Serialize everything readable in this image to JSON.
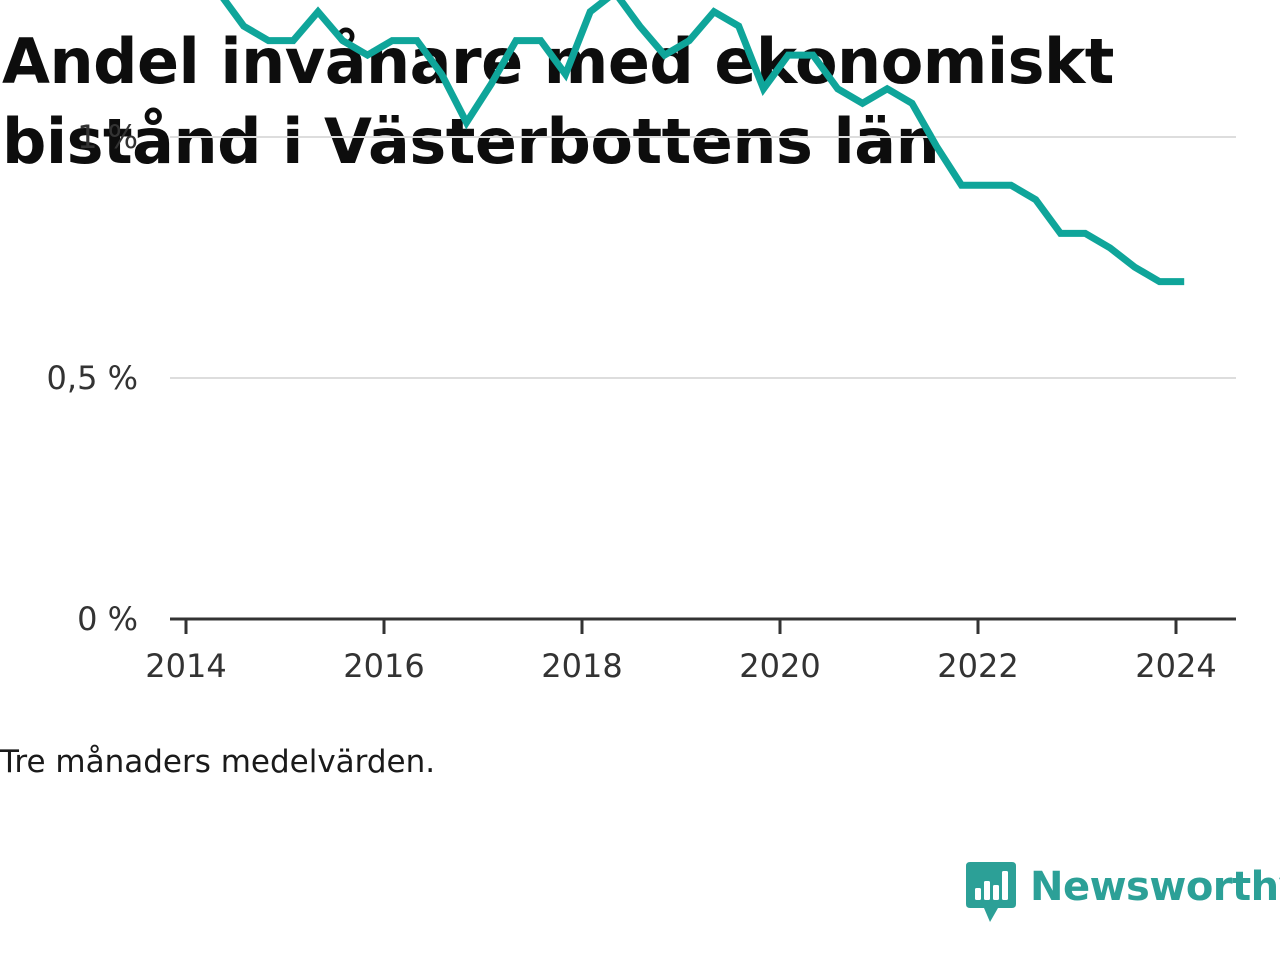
{
  "title": "Andel invånare med ekonomiskt bistånd i Västerbottens län",
  "footnote": "Tre månaders medelvärden.",
  "brand": {
    "name": "Newsworthy",
    "icon": "newsworthy-chart-bubble-icon",
    "color": "#2ca097"
  },
  "colors": {
    "line": "#0fa59a",
    "grid": "#dddddd",
    "axis": "#333333"
  },
  "chart_data": {
    "type": "line",
    "title": "Andel invånare med ekonomiskt bistånd i Västerbottens län",
    "xlabel": "",
    "ylabel": "",
    "x_ticks": [
      "2014",
      "2016",
      "2018",
      "2020",
      "2022",
      "2024"
    ],
    "y_ticks": [
      {
        "value": 0,
        "label": "0 %"
      },
      {
        "value": 0.5,
        "label": "0,5 %"
      },
      {
        "value": 1,
        "label": "1 %"
      }
    ],
    "ylim": [
      0,
      1.4
    ],
    "xlim": [
      2014,
      2024.6
    ],
    "grid": true,
    "legend": "none",
    "series": [
      {
        "values": [
          {
            "x": "2014-05",
            "y": 1.3
          },
          {
            "x": "2014-08",
            "y": 1.23
          },
          {
            "x": "2014-11",
            "y": 1.2
          },
          {
            "x": "2015-02",
            "y": 1.2
          },
          {
            "x": "2015-05",
            "y": 1.26
          },
          {
            "x": "2015-08",
            "y": 1.2
          },
          {
            "x": "2015-11",
            "y": 1.17
          },
          {
            "x": "2016-02",
            "y": 1.2
          },
          {
            "x": "2016-05",
            "y": 1.2
          },
          {
            "x": "2016-08",
            "y": 1.13
          },
          {
            "x": "2016-11",
            "y": 1.03
          },
          {
            "x": "2017-02",
            "y": 1.11
          },
          {
            "x": "2017-05",
            "y": 1.2
          },
          {
            "x": "2017-08",
            "y": 1.2
          },
          {
            "x": "2017-11",
            "y": 1.13
          },
          {
            "x": "2018-02",
            "y": 1.26
          },
          {
            "x": "2018-05",
            "y": 1.3
          },
          {
            "x": "2018-08",
            "y": 1.23
          },
          {
            "x": "2018-11",
            "y": 1.17
          },
          {
            "x": "2019-02",
            "y": 1.2
          },
          {
            "x": "2019-05",
            "y": 1.26
          },
          {
            "x": "2019-08",
            "y": 1.23
          },
          {
            "x": "2019-11",
            "y": 1.1
          },
          {
            "x": "2020-02",
            "y": 1.17
          },
          {
            "x": "2020-05",
            "y": 1.17
          },
          {
            "x": "2020-08",
            "y": 1.1
          },
          {
            "x": "2020-11",
            "y": 1.07
          },
          {
            "x": "2021-02",
            "y": 1.1
          },
          {
            "x": "2021-05",
            "y": 1.07
          },
          {
            "x": "2021-08",
            "y": 0.98
          },
          {
            "x": "2021-11",
            "y": 0.9
          },
          {
            "x": "2022-02",
            "y": 0.9
          },
          {
            "x": "2022-05",
            "y": 0.9
          },
          {
            "x": "2022-08",
            "y": 0.87
          },
          {
            "x": "2022-11",
            "y": 0.8
          },
          {
            "x": "2023-02",
            "y": 0.8
          },
          {
            "x": "2023-05",
            "y": 0.77
          },
          {
            "x": "2023-08",
            "y": 0.73
          },
          {
            "x": "2023-11",
            "y": 0.7
          },
          {
            "x": "2024-02",
            "y": 0.7
          }
        ]
      }
    ]
  }
}
